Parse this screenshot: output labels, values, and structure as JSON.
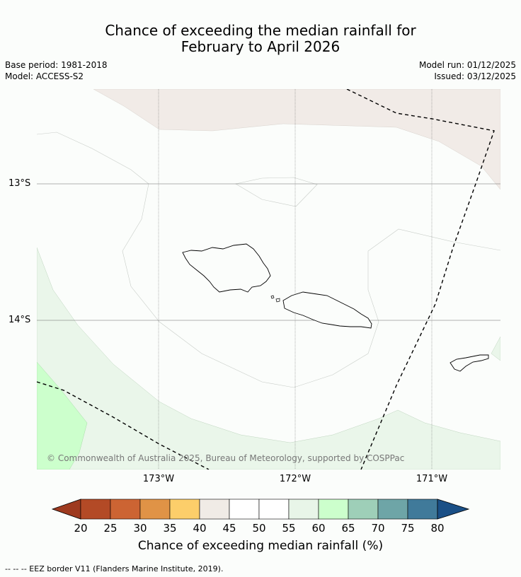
{
  "title_line1": "Chance of exceeding the median rainfall for",
  "title_line2": "February to April 2026",
  "base_period": "Base period: 1981-2018",
  "model": "Model: ACCESS-S2",
  "model_run": "Model run: 01/12/2025",
  "issued": "Issued: 03/12/2025",
  "lat_labels": [
    "13°S",
    "14°S"
  ],
  "lon_labels": [
    "173°W",
    "172°W",
    "171°W"
  ],
  "copyright": "© Commonwealth of Australia 2025, Bureau of Meteorology, supported by COSPPac",
  "colorbar": {
    "ticks": [
      "20",
      "25",
      "30",
      "35",
      "40",
      "45",
      "50",
      "55",
      "60",
      "65",
      "70",
      "75",
      "80"
    ],
    "colors": [
      "#9e3a1f",
      "#b34a26",
      "#cc6433",
      "#e09346",
      "#fcce6a",
      "#f0ebe6",
      "#ffffff",
      "#ffffff",
      "#e8f5e8",
      "#ccffcc",
      "#9ecfb8",
      "#6ea5a7",
      "#407a9a",
      "#1a4f86"
    ],
    "label": "Chance of exceeding median rainfall (%)"
  },
  "legend_note": "--  --  -- EEZ border V11 (Flanders Marine Institute, 2019)."
}
